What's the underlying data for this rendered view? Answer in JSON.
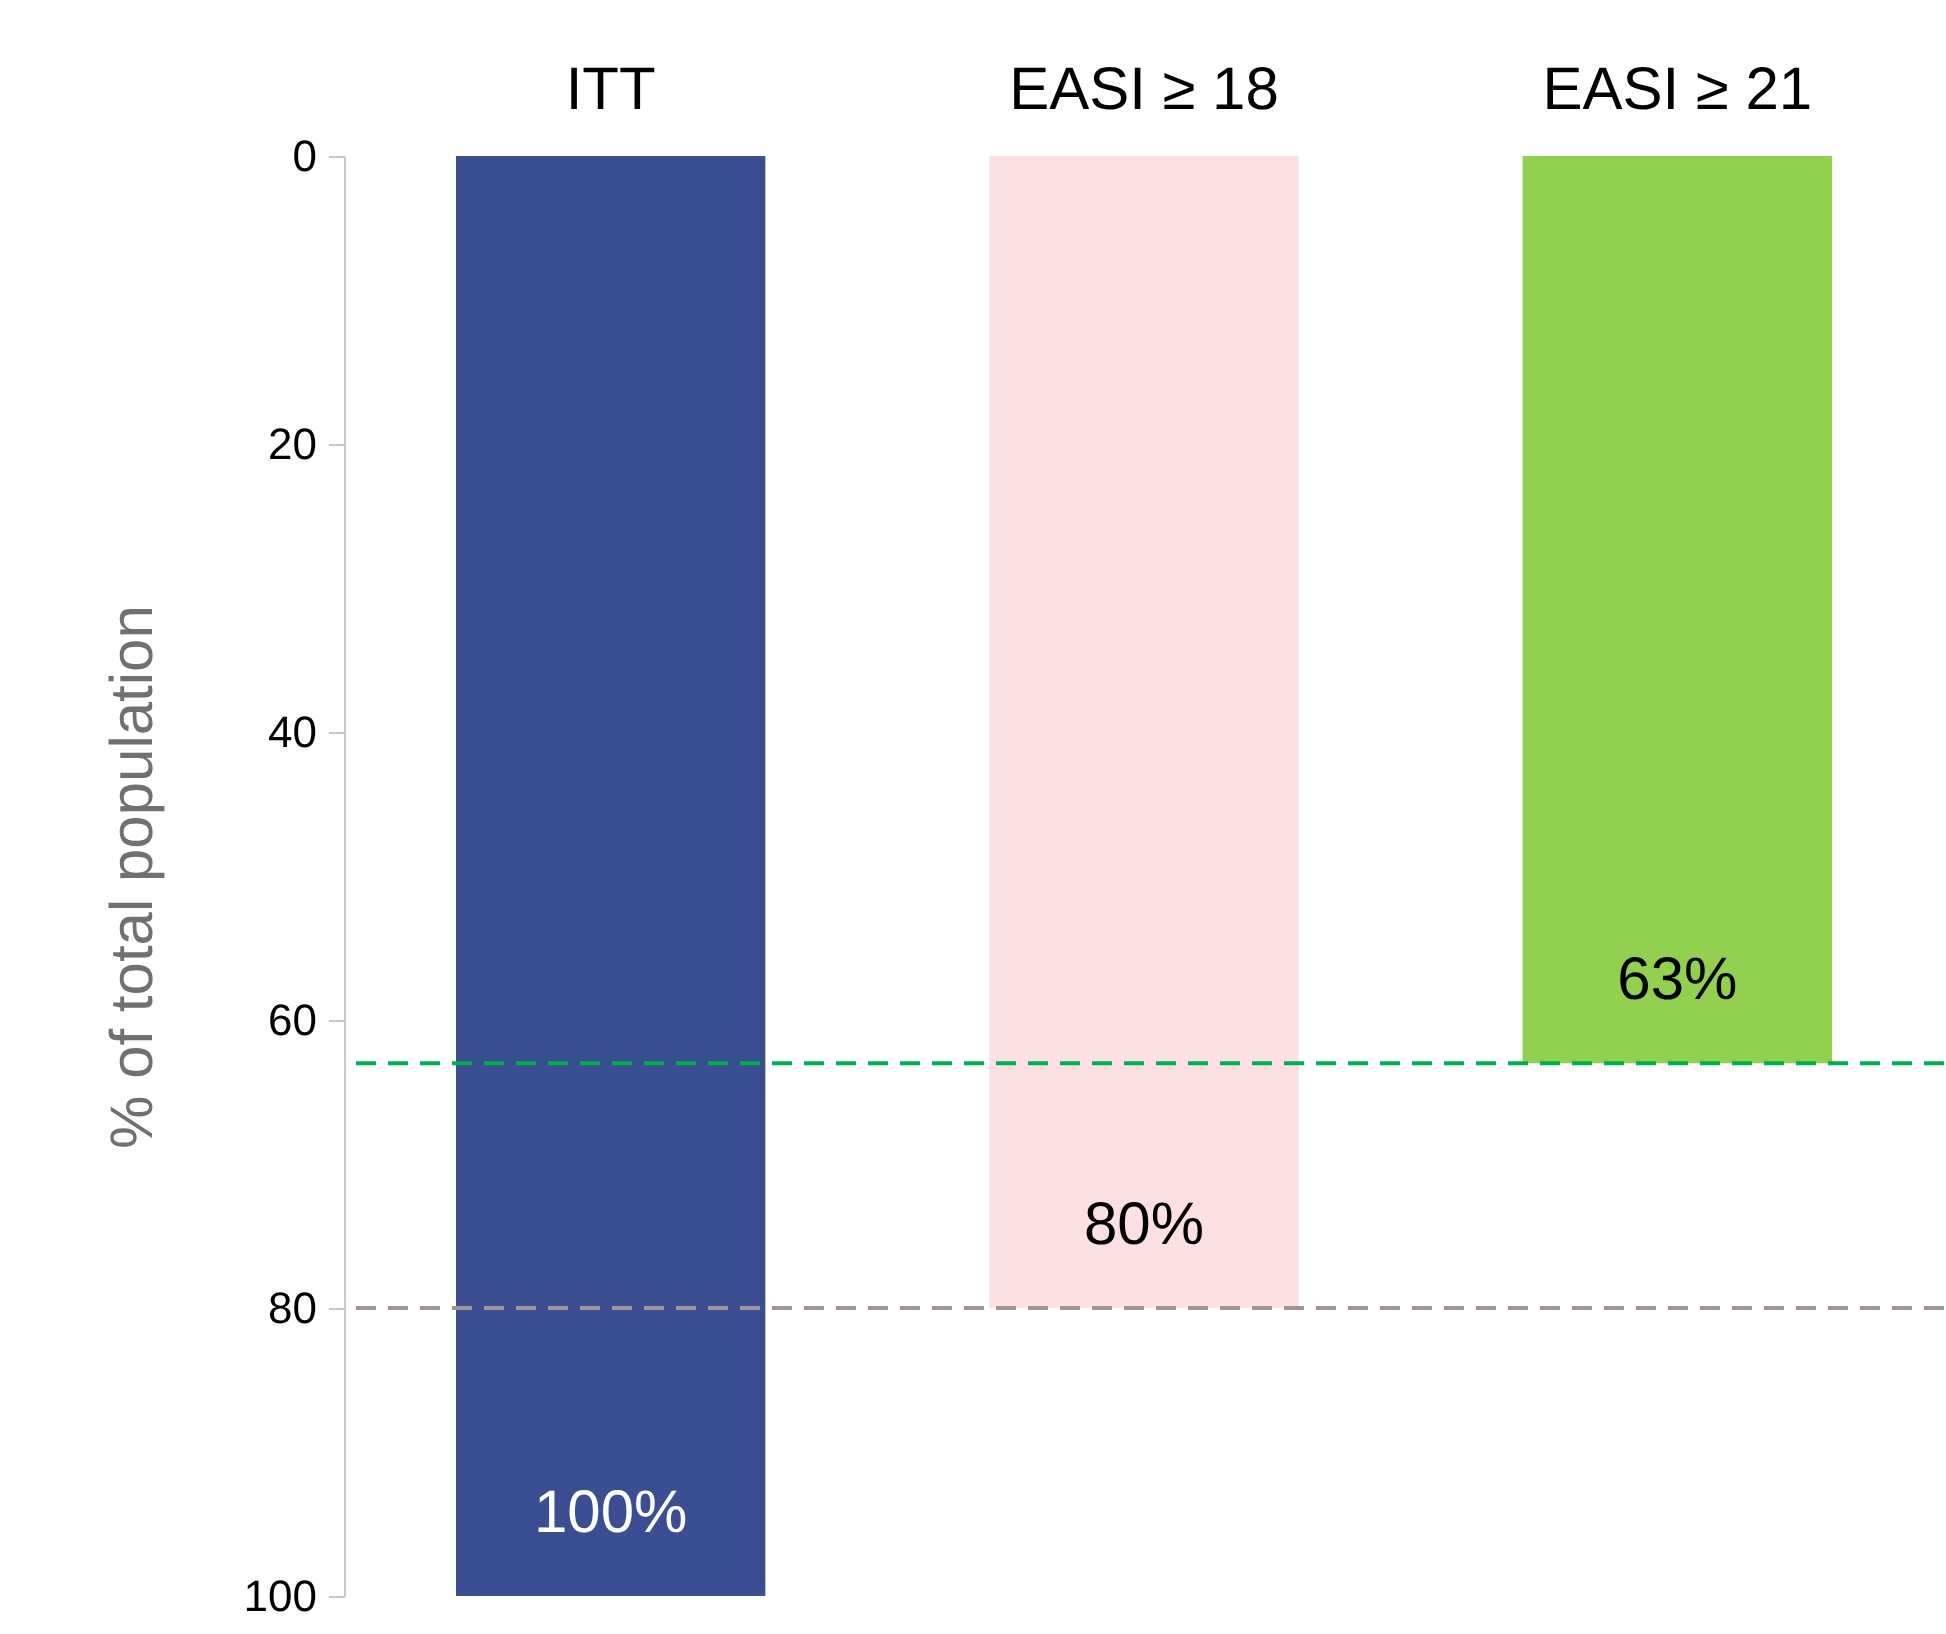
{
  "chart_data": {
    "type": "bar",
    "ylabel": "% of total population",
    "categories": [
      "ITT",
      "EASI ≥ 18",
      "EASI ≥ 21"
    ],
    "values": [
      100,
      80,
      63
    ],
    "colors": [
      "#3a4e91",
      "#fde0e2",
      "#92d050"
    ],
    "value_labels": [
      "100%",
      "80%",
      "63%"
    ],
    "ylim": [
      100,
      0
    ],
    "yticks": [
      0,
      20,
      40,
      60,
      80,
      100
    ],
    "grid": false,
    "ref_lines": [
      {
        "axis": "y",
        "value": 63,
        "color": "#00b050",
        "line_style": "dashed"
      },
      {
        "axis": "y",
        "value": 80,
        "color": "#a09494",
        "line_style": "dashed"
      }
    ]
  }
}
